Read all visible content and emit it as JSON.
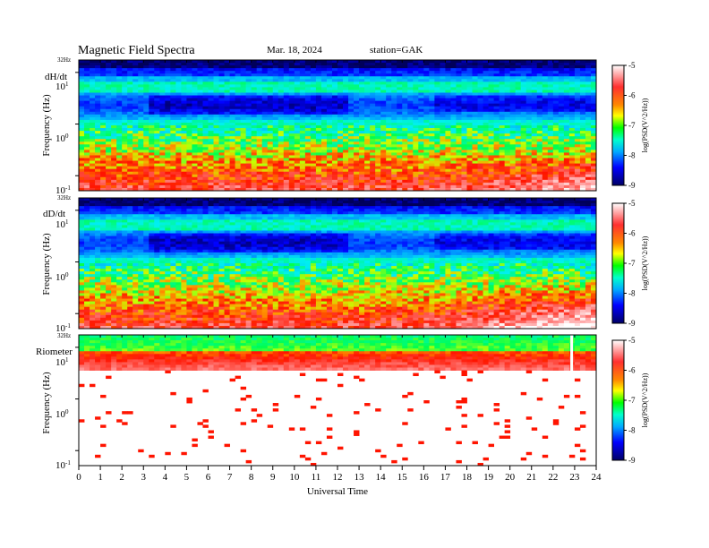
{
  "header": {
    "title": "Magnetic  Field  Spectra",
    "date": "Mar. 18, 2024",
    "station": "station=GAK"
  },
  "chart_data": {
    "type": "heatmap",
    "xlabel": "Universal Time",
    "x_ticks": [
      "0",
      "1",
      "2",
      "3",
      "4",
      "5",
      "6",
      "7",
      "8",
      "9",
      "10",
      "11",
      "12",
      "13",
      "14",
      "15",
      "16",
      "17",
      "18",
      "19",
      "20",
      "21",
      "22",
      "23",
      "24"
    ],
    "xlim": [
      0,
      24
    ],
    "y_scale": "log",
    "colorbar": {
      "label": "log(PSD(V^2/Hz))",
      "ticks": [
        "-5",
        "-6",
        "-7",
        "-8",
        "-9"
      ],
      "range": [
        -9,
        -5
      ],
      "colors": [
        "#000066",
        "#0000ff",
        "#00aaff",
        "#00ffcc",
        "#00ff00",
        "#ffff00",
        "#ff8800",
        "#ff0000",
        "#ffffff"
      ]
    },
    "panels": [
      {
        "label": "dH/dt",
        "ylabel": "Frequency (Hz)",
        "y_ticks": [
          {
            "base": "10",
            "exp": "1"
          },
          {
            "base": "10",
            "exp": "0"
          },
          {
            "base": "10",
            "exp": "-1"
          }
        ],
        "top_label": "32Hz"
      },
      {
        "label": "dD/dt",
        "ylabel": "Frequency (Hz)",
        "y_ticks": [
          {
            "base": "10",
            "exp": "1"
          },
          {
            "base": "10",
            "exp": "0"
          },
          {
            "base": "10",
            "exp": "-1"
          }
        ],
        "top_label": "32Hz"
      },
      {
        "label": "Riometer",
        "ylabel": "Frequency (Hz)",
        "y_ticks": [
          {
            "base": "10",
            "exp": "1"
          },
          {
            "base": "10",
            "exp": "0"
          },
          {
            "base": "10",
            "exp": "-1"
          }
        ],
        "top_label": "32Hz"
      }
    ]
  }
}
